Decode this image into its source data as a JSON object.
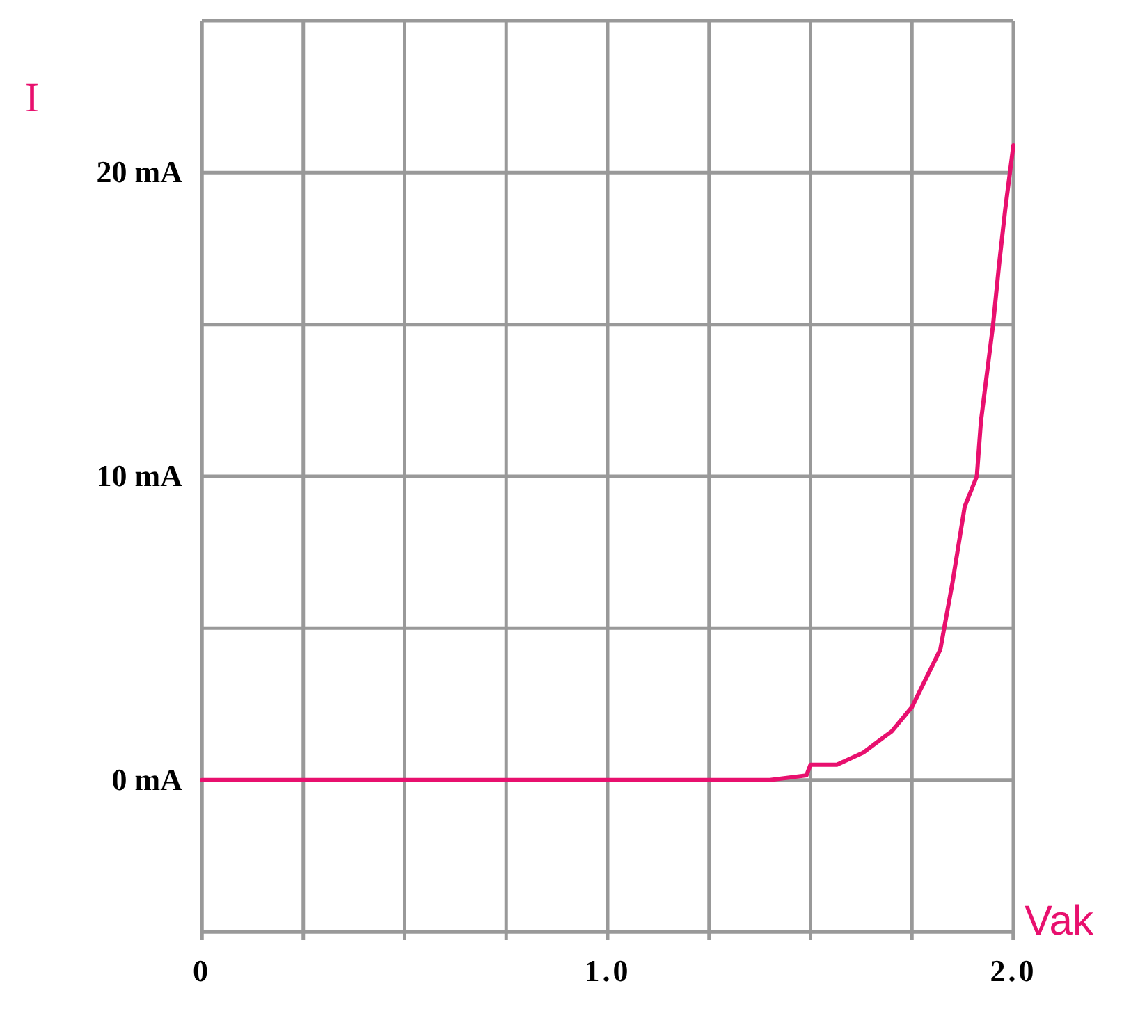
{
  "chart_data": {
    "type": "line",
    "xlabel": "Vak",
    "ylabel": "I",
    "x": [
      0,
      1.4,
      1.49,
      1.5,
      1.565,
      1.63,
      1.7,
      1.75,
      1.82,
      1.85,
      1.88,
      1.91,
      1.92,
      1.95,
      1.965,
      1.98,
      2.0
    ],
    "series": [
      {
        "color": "#e8106e",
        "values": [
          0,
          0,
          0.15,
          0.5,
          0.5,
          0.9,
          1.6,
          2.4,
          4.3,
          6.5,
          9.0,
          10,
          11.8,
          15,
          17,
          18.8,
          20.9
        ]
      }
    ],
    "xlim": [
      0,
      2.0
    ],
    "ylim": [
      -5,
      25
    ],
    "xticks": [
      0,
      {
        "value": 0.25,
        "label": null
      },
      {
        "value": 0.5,
        "label": null
      },
      {
        "value": 0.75,
        "label": null
      },
      {
        "value": 1.0,
        "label": "1.0"
      },
      {
        "value": 1.25,
        "label": null
      },
      {
        "value": 1.5,
        "label": null
      },
      {
        "value": 1.75,
        "label": null
      },
      {
        "value": 2.0,
        "label": "2.0"
      }
    ],
    "yticks": [
      {
        "value": -5,
        "label": null
      },
      {
        "value": 0,
        "label": "0 mA"
      },
      {
        "value": 5,
        "label": null
      },
      {
        "value": 10,
        "label": "10 mA"
      },
      {
        "value": 15,
        "label": null
      },
      {
        "value": 20,
        "label": "20 mA"
      },
      {
        "value": 25,
        "label": null
      }
    ],
    "grid": true,
    "marker": "none",
    "line_style": "solid"
  }
}
